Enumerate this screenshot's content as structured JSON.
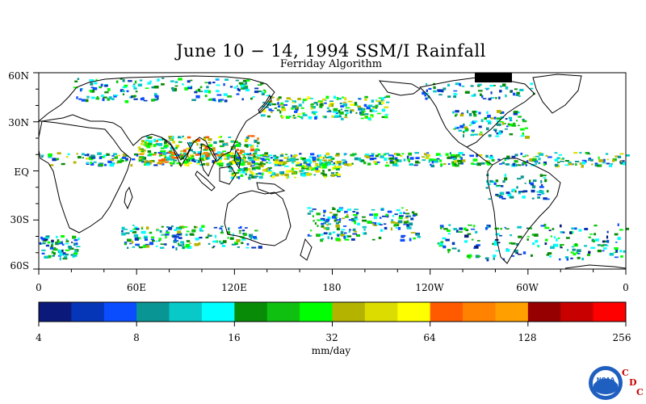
{
  "title": "June 10 − 14, 1994 SSM/I Rainfall",
  "subtitle": "Ferriday Algorithm",
  "lat_labels": [
    "60N",
    "30N",
    "EQ",
    "30S",
    "60S"
  ],
  "lon_labels": [
    "0",
    "60E",
    "120E",
    "180",
    "120W",
    "60W",
    "0"
  ],
  "colorbar": {
    "colors": [
      "#0b1a7a",
      "#0636b8",
      "#0a4dff",
      "#0a9595",
      "#08c8c8",
      "#00ffff",
      "#088c08",
      "#10c010",
      "#00ff00",
      "#b4b400",
      "#dcdc00",
      "#ffff00",
      "#ff5a00",
      "#ff8200",
      "#ffa000",
      "#960000",
      "#c80000",
      "#ff0000"
    ],
    "tick_labels": [
      "4",
      "8",
      "16",
      "32",
      "64",
      "128",
      "256"
    ],
    "units": "mm/day"
  },
  "logo": {
    "name": "NOAA",
    "text": "NOAA",
    "letters": [
      "C",
      "D",
      "C"
    ]
  }
}
